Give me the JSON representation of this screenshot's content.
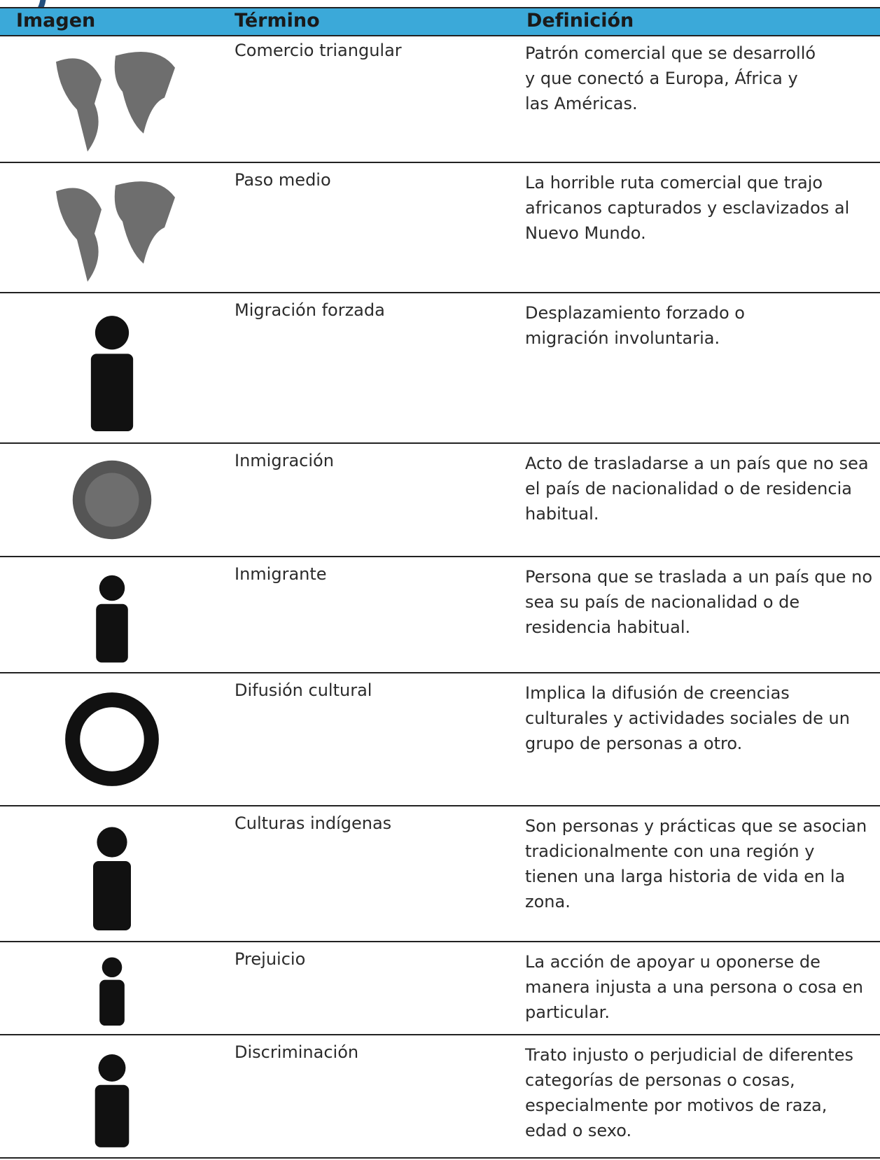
{
  "table": {
    "columns": [
      "Imagen",
      "Término",
      "Definición"
    ],
    "rows": [
      {
        "term": "Comercio triangular",
        "definition": [
          "Patrón comercial que se desarrolló",
          "y que conectó a Europa, África y",
          "las Américas."
        ]
      },
      {
        "term": "Paso medio",
        "definition": [
          "La horrible ruta comercial que trajo",
          "africanos capturados y esclavizados al",
          "Nuevo Mundo."
        ]
      },
      {
        "term": "Migración forzada",
        "definition": [
          "Desplazamiento forzado o",
          "migración involuntaria."
        ]
      },
      {
        "term": "Inmigración",
        "definition": [
          "Acto de trasladarse a un país que no sea",
          "el país de nacionalidad o de residencia",
          "habitual."
        ]
      },
      {
        "term": "Inmigrante",
        "definition": [
          "Persona que se traslada a un país que no",
          "sea su país de nacionalidad o de",
          "residencia habitual."
        ]
      },
      {
        "term": "Difusión cultural",
        "definition": [
          "Implica la difusión de creencias",
          "culturales y actividades sociales de un",
          "grupo de personas a otro."
        ]
      },
      {
        "term": "Culturas indígenas",
        "definition": [
          "Son personas y prácticas que se asocian",
          "tradicionalmente con una región y",
          "tienen una larga historia de vida en la",
          "zona."
        ]
      },
      {
        "term": "Prejuicio",
        "definition": [
          "La acción de apoyar u oponerse de",
          "manera injusta a una persona o cosa en",
          "particular."
        ]
      },
      {
        "term": "Discriminación",
        "definition": [
          "Trato injusto o perjudicial de diferentes",
          "categorías de personas o cosas,",
          "especialmente por motivos de raza,",
          "edad o sexo."
        ]
      }
    ]
  }
}
